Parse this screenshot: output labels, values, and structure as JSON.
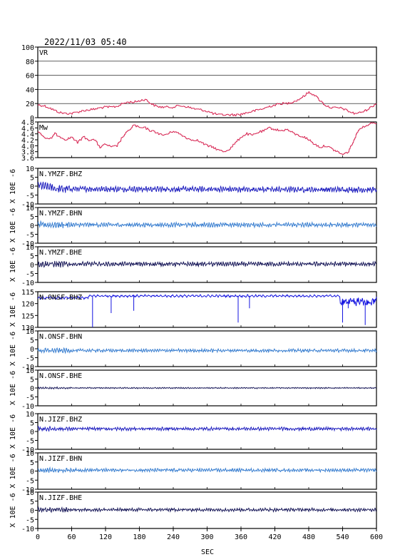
{
  "header": {
    "timestamp": "2022/11/03 05:40"
  },
  "colors": {
    "vr": "#d6204e",
    "mw": "#d6204e",
    "bhz": "#1f1fbf",
    "bhn": "#3a7fd0",
    "bhe": "#1a1a5a",
    "onsf_bhz": "#1414e0",
    "frame": "#000000"
  },
  "chart_data": [
    {
      "type": "line",
      "title": "VR",
      "ylim": [
        0,
        100
      ],
      "yticks": [
        "100",
        "80",
        "60",
        "40",
        "20",
        "0"
      ],
      "grid": true,
      "x": [
        0,
        10,
        20,
        30,
        40,
        50,
        60,
        70,
        80,
        90,
        100,
        110,
        120,
        130,
        140,
        150,
        160,
        170,
        180,
        190,
        200,
        210,
        220,
        230,
        240,
        250,
        260,
        270,
        280,
        290,
        300,
        310,
        320,
        330,
        340,
        350,
        360,
        370,
        380,
        390,
        400,
        410,
        420,
        430,
        440,
        450,
        460,
        470,
        480,
        490,
        500,
        510,
        520,
        530,
        540,
        550,
        560,
        570,
        580,
        590,
        600
      ],
      "values": [
        18,
        17,
        14,
        10,
        7,
        6,
        6,
        8,
        10,
        11,
        12,
        14,
        15,
        15,
        16,
        20,
        22,
        22,
        24,
        26,
        20,
        16,
        15,
        15,
        15,
        17,
        16,
        14,
        12,
        11,
        9,
        6,
        4,
        4,
        4,
        4,
        5,
        7,
        9,
        11,
        13,
        16,
        18,
        20,
        20,
        22,
        25,
        30,
        36,
        32,
        24,
        17,
        14,
        14,
        13,
        9,
        6,
        7,
        10,
        15,
        20
      ]
    },
    {
      "type": "line",
      "title": "Mw",
      "ylim": [
        3.6,
        4.8
      ],
      "yticks": [
        "4.8",
        "4.6",
        "4.4",
        "4.2",
        "4.0",
        "3.8",
        "3.6"
      ],
      "x": [
        0,
        10,
        20,
        30,
        40,
        50,
        60,
        70,
        80,
        90,
        100,
        110,
        120,
        130,
        140,
        150,
        160,
        170,
        180,
        190,
        200,
        210,
        220,
        230,
        240,
        250,
        260,
        270,
        280,
        290,
        300,
        310,
        320,
        330,
        340,
        350,
        360,
        370,
        380,
        390,
        400,
        410,
        420,
        430,
        440,
        450,
        460,
        470,
        480,
        490,
        500,
        510,
        520,
        530,
        540,
        550,
        560,
        570,
        580,
        590,
        600
      ],
      "values": [
        4.5,
        4.3,
        4.2,
        4.4,
        4.3,
        4.2,
        4.3,
        4.1,
        4.3,
        4.2,
        4.2,
        3.95,
        4.05,
        3.95,
        4.0,
        4.3,
        4.5,
        4.7,
        4.6,
        4.6,
        4.5,
        4.45,
        4.35,
        4.4,
        4.5,
        4.4,
        4.3,
        4.2,
        4.2,
        4.1,
        4.0,
        3.95,
        3.85,
        3.8,
        3.9,
        4.1,
        4.3,
        4.4,
        4.35,
        4.45,
        4.5,
        4.6,
        4.55,
        4.5,
        4.55,
        4.45,
        4.35,
        4.3,
        4.2,
        4.05,
        3.95,
        4.0,
        3.9,
        3.8,
        3.7,
        3.8,
        4.2,
        4.6,
        4.65,
        4.8,
        4.75
      ]
    },
    {
      "type": "line",
      "station": "N.YMZF.BHZ",
      "unit": "X 10E -6",
      "ylim": [
        -10,
        10
      ],
      "yticks": [
        "10",
        "5",
        "0",
        "-5",
        "-10"
      ],
      "amplitude": 1.4,
      "offset": -1.0,
      "trend": true,
      "color_key": "bhz"
    },
    {
      "type": "line",
      "station": "N.YMZF.BHN",
      "unit": "X 10E -6",
      "ylim": [
        -10,
        10
      ],
      "yticks": [
        "10",
        "5",
        "0",
        "-5",
        "-10"
      ],
      "amplitude": 1.1,
      "offset": 0.3,
      "color_key": "bhn"
    },
    {
      "type": "line",
      "station": "N.YMZF.BHE",
      "unit": "X 10E -6",
      "ylim": [
        -10,
        10
      ],
      "yticks": [
        "10",
        "5",
        "0",
        "-5",
        "-10"
      ],
      "amplitude": 1.1,
      "offset": 0.3,
      "color_key": "bhe"
    },
    {
      "type": "line",
      "station": "N.ONSF.BHZ",
      "unit": "X 10E -6",
      "ylim": [
        -130,
        -115
      ],
      "yticks": [
        "115",
        "120",
        "125",
        "130"
      ],
      "tick_values": [
        -115,
        -120,
        -125,
        -130
      ],
      "baseline": -116.8,
      "spikes": [
        [
          97,
          -130
        ],
        [
          130,
          -124
        ],
        [
          170,
          -123
        ],
        [
          355,
          -128
        ],
        [
          375,
          -122
        ],
        [
          540,
          -128
        ],
        [
          550,
          -122
        ],
        [
          580,
          -129
        ]
      ],
      "color_key": "onsf_bhz"
    },
    {
      "type": "line",
      "station": "N.ONSF.BHN",
      "unit": "X 10E -6",
      "ylim": [
        -10,
        10
      ],
      "yticks": [
        "10",
        "5",
        "0",
        "-5",
        "-10"
      ],
      "amplitude": 0.8,
      "offset": -1.0,
      "color_key": "bhn"
    },
    {
      "type": "line",
      "station": "N.ONSF.BHE",
      "unit": "X 10E -6",
      "ylim": [
        -10,
        10
      ],
      "yticks": [
        "10",
        "5",
        "0",
        "-5",
        "-10"
      ],
      "amplitude": 0.3,
      "offset": 0.0,
      "color_key": "bhe"
    },
    {
      "type": "line",
      "station": "N.JIZF.BHZ",
      "unit": "X 10E -6",
      "ylim": [
        -10,
        10
      ],
      "yticks": [
        "10",
        "5",
        "0",
        "-5",
        "-10"
      ],
      "amplitude": 0.8,
      "offset": 1.5,
      "color_key": "bhz"
    },
    {
      "type": "line",
      "station": "N.JIZF.BHN",
      "unit": "X 10E -6",
      "ylim": [
        -10,
        10
      ],
      "yticks": [
        "10",
        "5",
        "0",
        "-5",
        "-10"
      ],
      "amplitude": 0.8,
      "offset": 0.5,
      "color_key": "bhn"
    },
    {
      "type": "line",
      "station": "N.JIZF.BHE",
      "unit": "X 10E -6",
      "ylim": [
        -10,
        10
      ],
      "yticks": [
        "10",
        "5",
        "0",
        "-5",
        "-10"
      ],
      "amplitude": 0.8,
      "offset": 0.3,
      "color_key": "bhe"
    }
  ],
  "x_axis": {
    "label": "SEC",
    "xlim": [
      0,
      600
    ],
    "ticks": [
      0,
      60,
      120,
      180,
      240,
      300,
      360,
      420,
      480,
      540,
      600
    ],
    "tick_labels": [
      "0",
      "60",
      "120",
      "180",
      "240",
      "300",
      "360",
      "420",
      "480",
      "540",
      "600"
    ]
  }
}
